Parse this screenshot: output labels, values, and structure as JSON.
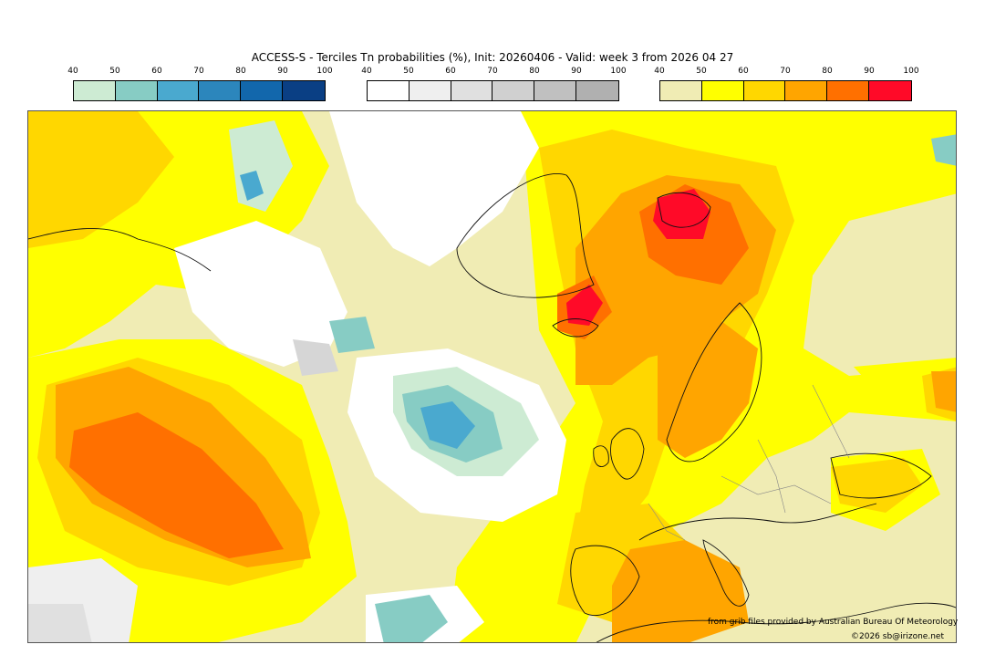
{
  "title": "ACCESS-S - Terciles Tn probabilities (%), Init: 20260406 - Valid: week 3 from 2026 04 27",
  "colorbars": [
    {
      "name": "below-normal",
      "ticks": [
        "40",
        "50",
        "60",
        "70",
        "80",
        "90",
        "100"
      ],
      "colors": [
        "#cdebd3",
        "#87ccc4",
        "#4aa9cf",
        "#2c86bc",
        "#1267ac",
        "#0a3f84"
      ]
    },
    {
      "name": "near-normal",
      "ticks": [
        "40",
        "50",
        "60",
        "70",
        "80",
        "90",
        "100"
      ],
      "colors": [
        "#ffffff",
        "#efefef",
        "#e0e0e0",
        "#d0d0d0",
        "#c0c0c0",
        "#b0b0b0"
      ]
    },
    {
      "name": "above-normal",
      "ticks": [
        "40",
        "50",
        "60",
        "70",
        "80",
        "90",
        "100"
      ],
      "colors": [
        "#f0ecb4",
        "#ffff00",
        "#ffd700",
        "#ffa500",
        "#ff7000",
        "#ff0a28"
      ]
    }
  ],
  "credits": {
    "source": "from grib files provided by Australian Bureau Of Meteorology",
    "copyright": "©2026 sb@irizone.net"
  }
}
